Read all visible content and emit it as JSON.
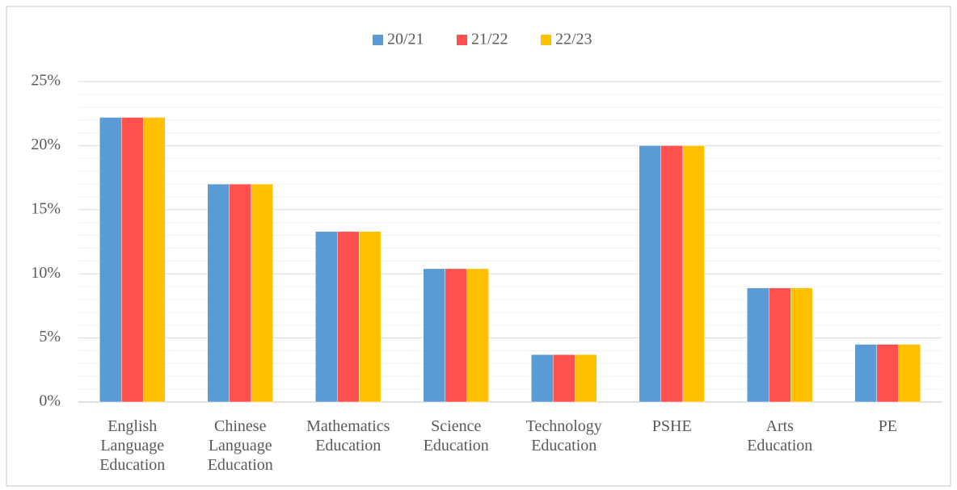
{
  "chart_data": {
    "type": "bar",
    "categories": [
      "English Language Education",
      "Chinese Language Education",
      "Mathematics Education",
      "Science Education",
      "Technology Education",
      "PSHE",
      "Arts Education",
      "PE"
    ],
    "series": [
      {
        "name": "20/21",
        "color": "#5b9bd5",
        "values": [
          22.2,
          17.0,
          13.3,
          10.4,
          3.7,
          20.0,
          8.9,
          4.5
        ]
      },
      {
        "name": "21/22",
        "color": "#ff5050",
        "values": [
          22.2,
          17.0,
          13.3,
          10.4,
          3.7,
          20.0,
          8.9,
          4.5
        ]
      },
      {
        "name": "22/23",
        "color": "#ffc000",
        "values": [
          22.2,
          17.0,
          13.3,
          10.4,
          3.7,
          20.0,
          8.9,
          4.5
        ]
      }
    ],
    "ylim": [
      0,
      25
    ],
    "yticks": [
      {
        "value": 0,
        "label": "0%"
      },
      {
        "value": 5,
        "label": "5%"
      },
      {
        "value": 10,
        "label": "10%"
      },
      {
        "value": 15,
        "label": "15%"
      },
      {
        "value": 20,
        "label": "20%"
      },
      {
        "value": 25,
        "label": "25%"
      }
    ],
    "minor_yticks": [
      1,
      2,
      3,
      4,
      6,
      7,
      8,
      9,
      11,
      12,
      13,
      14,
      16,
      17,
      18,
      19,
      21,
      22,
      23,
      24
    ],
    "grid": true,
    "legend": "top"
  }
}
